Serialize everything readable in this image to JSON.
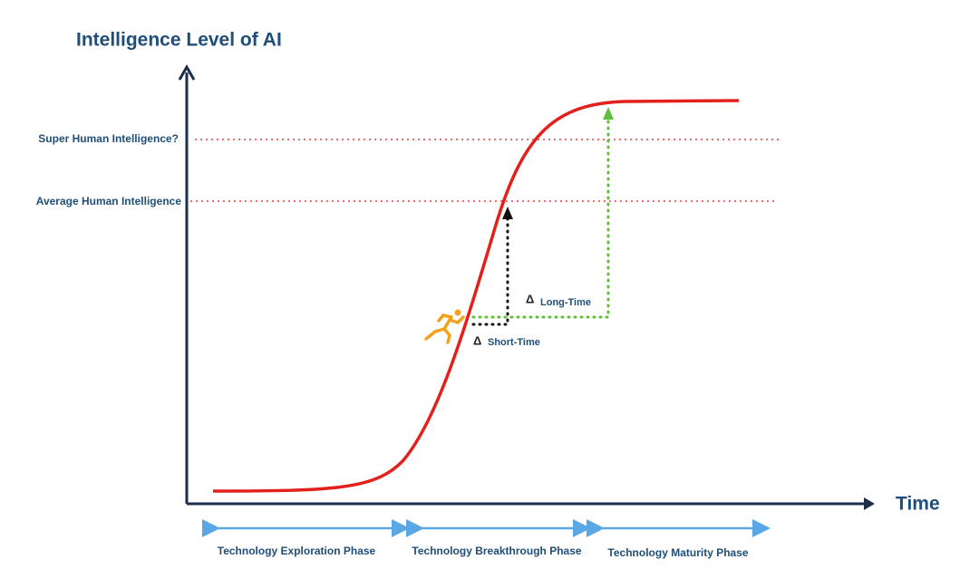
{
  "title": "Intelligence Level of AI",
  "x_axis_label": "Time",
  "levels": [
    "Super Human Intelligence?",
    "Average Human Intelligence"
  ],
  "annotations": [
    {
      "symbol": "Δ",
      "label": "Short-Time"
    },
    {
      "symbol": "Δ",
      "label": "Long-Time"
    }
  ],
  "phases": [
    "Technology Exploration Phase",
    "Technology Breakthrough Phase",
    "Technology Maturity Phase"
  ]
}
